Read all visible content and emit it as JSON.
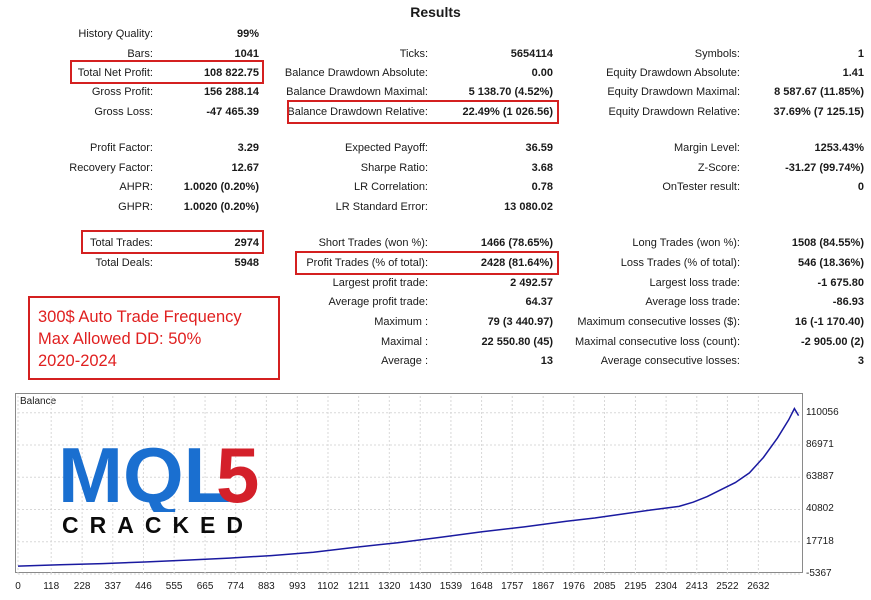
{
  "title": "Results",
  "stats": {
    "history_quality": {
      "label": "History Quality:",
      "value": "99%"
    },
    "bars": {
      "label": "Bars:",
      "value": "1041"
    },
    "total_net_profit": {
      "label": "Total Net Profit:",
      "value": "108 822.75"
    },
    "gross_profit": {
      "label": "Gross Profit:",
      "value": "156 288.14"
    },
    "gross_loss": {
      "label": "Gross Loss:",
      "value": "-47 465.39"
    },
    "ticks": {
      "label": "Ticks:",
      "value": "5654114"
    },
    "balance_dd_abs": {
      "label": "Balance Drawdown Absolute:",
      "value": "0.00"
    },
    "balance_dd_max": {
      "label": "Balance Drawdown Maximal:",
      "value": "5 138.70 (4.52%)"
    },
    "balance_dd_rel": {
      "label": "Balance Drawdown Relative:",
      "value": "22.49% (1 026.56)"
    },
    "symbols": {
      "label": "Symbols:",
      "value": "1"
    },
    "equity_dd_abs": {
      "label": "Equity Drawdown Absolute:",
      "value": "1.41"
    },
    "equity_dd_max": {
      "label": "Equity Drawdown Maximal:",
      "value": "8 587.67 (11.85%)"
    },
    "equity_dd_rel": {
      "label": "Equity Drawdown Relative:",
      "value": "37.69% (7 125.15)"
    },
    "profit_factor": {
      "label": "Profit Factor:",
      "value": "3.29"
    },
    "recovery_factor": {
      "label": "Recovery Factor:",
      "value": "12.67"
    },
    "ahpr": {
      "label": "AHPR:",
      "value": "1.0020 (0.20%)"
    },
    "ghpr": {
      "label": "GHPR:",
      "value": "1.0020 (0.20%)"
    },
    "expected_payoff": {
      "label": "Expected Payoff:",
      "value": "36.59"
    },
    "sharpe_ratio": {
      "label": "Sharpe Ratio:",
      "value": "3.68"
    },
    "lr_correlation": {
      "label": "LR Correlation:",
      "value": "0.78"
    },
    "lr_std_error": {
      "label": "LR Standard Error:",
      "value": "13 080.02"
    },
    "margin_level": {
      "label": "Margin Level:",
      "value": "1253.43%"
    },
    "z_score": {
      "label": "Z-Score:",
      "value": "-31.27 (99.74%)"
    },
    "ontester_result": {
      "label": "OnTester result:",
      "value": "0"
    },
    "total_trades": {
      "label": "Total Trades:",
      "value": "2974"
    },
    "total_deals": {
      "label": "Total Deals:",
      "value": "5948"
    },
    "short_trades": {
      "label": "Short Trades (won %):",
      "value": "1466 (78.65%)"
    },
    "profit_trades": {
      "label": "Profit Trades (% of total):",
      "value": "2428 (81.64%)"
    },
    "largest_profit_trade": {
      "label": "Largest profit trade:",
      "value": "2 492.57"
    },
    "avg_profit_trade": {
      "label": "Average profit trade:",
      "value": "64.37"
    },
    "max_consec_wins_label": {
      "label": "Maximum :",
      "value": "79 (3 440.97)"
    },
    "maximal_consec_profit": {
      "label": "Maximal :",
      "value": "22 550.80 (45)"
    },
    "avg_consec_wins": {
      "label": "Average :",
      "value": "13"
    },
    "long_trades": {
      "label": "Long Trades (won %):",
      "value": "1508 (84.55%)"
    },
    "loss_trades": {
      "label": "Loss Trades (% of total):",
      "value": "546 (18.36%)"
    },
    "largest_loss_trade": {
      "label": "Largest loss trade:",
      "value": "-1 675.80"
    },
    "avg_loss_trade": {
      "label": "Average loss trade:",
      "value": "-86.93"
    },
    "max_consec_losses": {
      "label": "Maximum consecutive losses ($):",
      "value": "16 (-1 170.40)"
    },
    "maximal_consec_loss": {
      "label": "Maximal consecutive loss (count):",
      "value": "-2 905.00 (2)"
    },
    "avg_consec_losses": {
      "label": "Average consecutive losses:",
      "value": "3"
    }
  },
  "promo": {
    "line1": "300$ Auto Trade Frequency",
    "line2": "Max Allowed DD: 50%",
    "line3": "2020-2024"
  },
  "watermark": {
    "logo_text": "MQL5",
    "subtitle": "CRACKED"
  },
  "colors": {
    "highlight": "#d42020",
    "line": "#1a1aa0",
    "logo_blue": "#1a6fd0",
    "logo_red": "#d4202a"
  },
  "chart_data": {
    "type": "line",
    "title": "Balance",
    "x_ticks": [
      "0",
      "118",
      "228",
      "337",
      "446",
      "555",
      "665",
      "774",
      "883",
      "993",
      "1102",
      "1211",
      "1320",
      "1430",
      "1539",
      "1648",
      "1757",
      "1867",
      "1976",
      "2085",
      "2195",
      "2304",
      "2413",
      "2522",
      "2632"
    ],
    "y_ticks": [
      "110056",
      "86971",
      "63887",
      "40802",
      "17718",
      "-5367"
    ],
    "xlim": [
      0,
      2780
    ],
    "ylim": [
      -5367,
      122000
    ],
    "series": [
      {
        "x": [
          0,
          150,
          300,
          450,
          600,
          750,
          900,
          1050,
          1200,
          1350,
          1500,
          1650,
          1800,
          1950,
          2050,
          2150,
          2250,
          2350,
          2400,
          2450,
          2500,
          2550,
          2600,
          2650,
          2700,
          2740,
          2760,
          2775
        ],
        "values": [
          300,
          1200,
          2100,
          3200,
          4600,
          6000,
          7800,
          10200,
          13800,
          17000,
          20800,
          24800,
          28300,
          32400,
          34700,
          37600,
          40400,
          43000,
          46000,
          50000,
          55000,
          60000,
          67000,
          78000,
          92000,
          105000,
          113000,
          108000
        ]
      }
    ]
  }
}
